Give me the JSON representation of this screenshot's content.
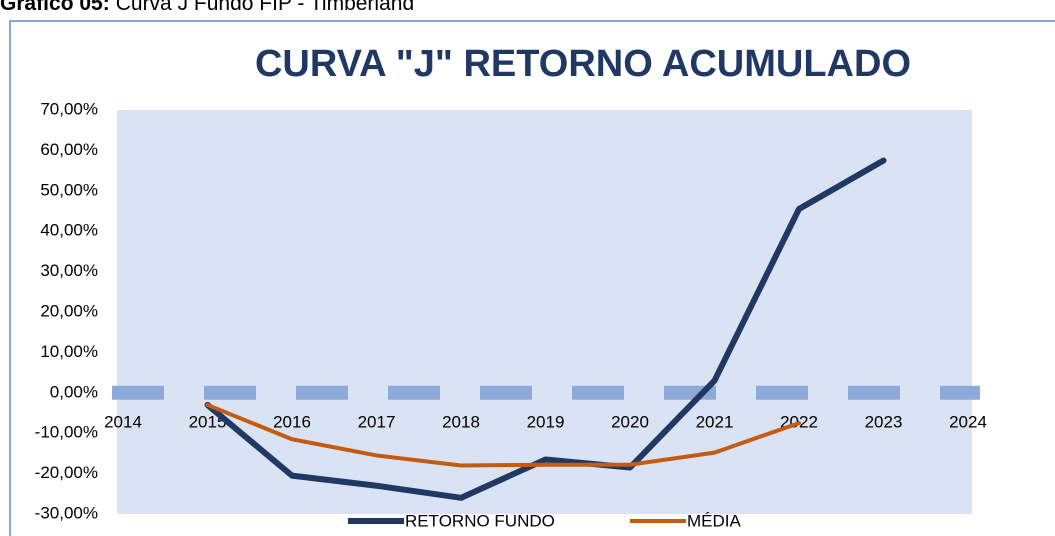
{
  "caption": {
    "label": "Gráfico 05:",
    "text": "Curva J Fundo FIP - Timberland"
  },
  "chart_data": {
    "type": "line",
    "title": "CURVA \"J\" RETORNO ACUMULADO",
    "categories": [
      "2014",
      "2015",
      "2016",
      "2017",
      "2018",
      "2019",
      "2020",
      "2021",
      "2022",
      "2023",
      "2024"
    ],
    "series": [
      {
        "name": "RETORNO FUNDO",
        "color": "#203864",
        "values": [
          null,
          -3,
          -20.5,
          -23,
          -26,
          -16.5,
          -18.5,
          3,
          45.5,
          57.5,
          null
        ]
      },
      {
        "name": "MÉDIA",
        "color": "#c55a11",
        "values": [
          null,
          -3,
          -11.5,
          -15.5,
          -18,
          -17.8,
          -17.8,
          -14.8,
          -7.5,
          null,
          null
        ]
      }
    ],
    "ylim": [
      -30,
      70
    ],
    "yticks": [
      {
        "value": -30,
        "label": "-30,00%"
      },
      {
        "value": -20,
        "label": "-20,00%"
      },
      {
        "value": -10,
        "label": "-10,00%"
      },
      {
        "value": 0,
        "label": "0,00%"
      },
      {
        "value": 10,
        "label": "10,00%"
      },
      {
        "value": 20,
        "label": "20,00%"
      },
      {
        "value": 30,
        "label": "30,00%"
      },
      {
        "value": 40,
        "label": "40,00%"
      },
      {
        "value": 50,
        "label": "50,00%"
      },
      {
        "value": 60,
        "label": "60,00%"
      },
      {
        "value": 70,
        "label": "70,00%"
      }
    ],
    "zero_line_color": "#8eaadb",
    "plot_background": "#dae3f3",
    "legend": "bottom"
  }
}
